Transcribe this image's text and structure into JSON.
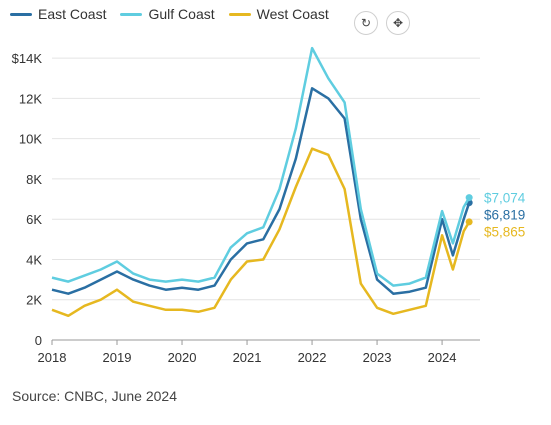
{
  "chart_data": {
    "type": "line",
    "title": "",
    "xlabel": "",
    "ylabel": "",
    "x_ticks": [
      "2018",
      "2019",
      "2020",
      "2021",
      "2022",
      "2023",
      "2024"
    ],
    "y_ticks": [
      "0",
      "2K",
      "4K",
      "6K",
      "8K",
      "10K",
      "12K",
      "$14K"
    ],
    "xlim": [
      "2018-01",
      "2024-08"
    ],
    "ylim": [
      0,
      15000
    ],
    "grid": true,
    "legend": "top-left",
    "x": [
      "2018-01",
      "2018-04",
      "2018-07",
      "2018-10",
      "2019-01",
      "2019-04",
      "2019-07",
      "2019-10",
      "2020-01",
      "2020-04",
      "2020-07",
      "2020-10",
      "2021-01",
      "2021-04",
      "2021-07",
      "2021-10",
      "2022-01",
      "2022-04",
      "2022-07",
      "2022-10",
      "2023-01",
      "2023-04",
      "2023-07",
      "2023-10",
      "2024-01",
      "2024-03",
      "2024-05",
      "2024-06"
    ],
    "series": [
      {
        "name": "East Coast",
        "color": "#2a6fa3",
        "values": [
          2500,
          2300,
          2600,
          3000,
          3400,
          3000,
          2700,
          2500,
          2600,
          2500,
          2700,
          4000,
          4800,
          5000,
          6500,
          9000,
          12500,
          12000,
          11000,
          6000,
          3000,
          2300,
          2400,
          2600,
          6000,
          4200,
          6000,
          6819
        ],
        "end_label": "$6,819"
      },
      {
        "name": "Gulf Coast",
        "color": "#5fcde0",
        "values": [
          3100,
          2900,
          3200,
          3500,
          3900,
          3300,
          3000,
          2900,
          3000,
          2900,
          3100,
          4600,
          5300,
          5600,
          7500,
          10500,
          14500,
          13000,
          11800,
          6500,
          3300,
          2700,
          2800,
          3100,
          6400,
          4800,
          6600,
          7074
        ],
        "end_label": "$7,074"
      },
      {
        "name": "West Coast",
        "color": "#e6b820",
        "values": [
          1500,
          1200,
          1700,
          2000,
          2500,
          1900,
          1700,
          1500,
          1500,
          1400,
          1600,
          3000,
          3900,
          4000,
          5500,
          7600,
          9500,
          9200,
          7500,
          2800,
          1600,
          1300,
          1500,
          1700,
          5200,
          3500,
          5400,
          5865
        ],
        "end_label": "$5,865"
      }
    ]
  },
  "source": "Source: CNBC, June 2024",
  "icons": {
    "refresh": "refresh-icon",
    "move": "move-icon"
  }
}
